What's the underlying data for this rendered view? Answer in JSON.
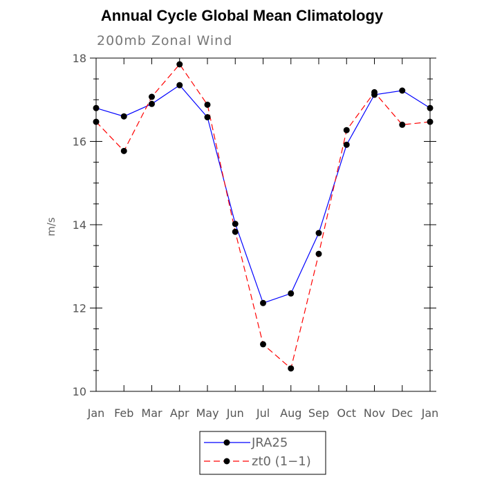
{
  "chart_data": {
    "type": "line",
    "title": "Annual Cycle Global Mean Climatology",
    "subtitle": "200mb Zonal Wind",
    "ylabel": "m/s",
    "xlabel": "",
    "categories": [
      "Jan",
      "Feb",
      "Mar",
      "Apr",
      "May",
      "Jun",
      "Jul",
      "Aug",
      "Sep",
      "Oct",
      "Nov",
      "Dec",
      "Jan"
    ],
    "ylim": [
      10,
      18
    ],
    "yticks": [
      10,
      12,
      14,
      16,
      18
    ],
    "yticks_minor": [
      10.5,
      11,
      11.5,
      12.5,
      13,
      13.5,
      14.5,
      15,
      15.5,
      16.5,
      17,
      17.5
    ],
    "grid": false,
    "legend_position": "bottom-center",
    "series": [
      {
        "name": "JRA25",
        "color": "#0000ff",
        "dash": "solid",
        "marker": "filled-circle",
        "values": [
          16.8,
          16.6,
          16.9,
          17.35,
          16.58,
          14.02,
          12.12,
          12.35,
          13.8,
          15.92,
          17.12,
          17.22,
          16.8
        ]
      },
      {
        "name": "zt0 (1−1)",
        "color": "#ff0000",
        "dash": "dashed",
        "marker": "filled-circle",
        "values": [
          16.47,
          15.77,
          17.07,
          17.85,
          16.88,
          13.83,
          11.13,
          10.55,
          13.3,
          16.27,
          17.18,
          16.4,
          16.47
        ]
      }
    ]
  }
}
